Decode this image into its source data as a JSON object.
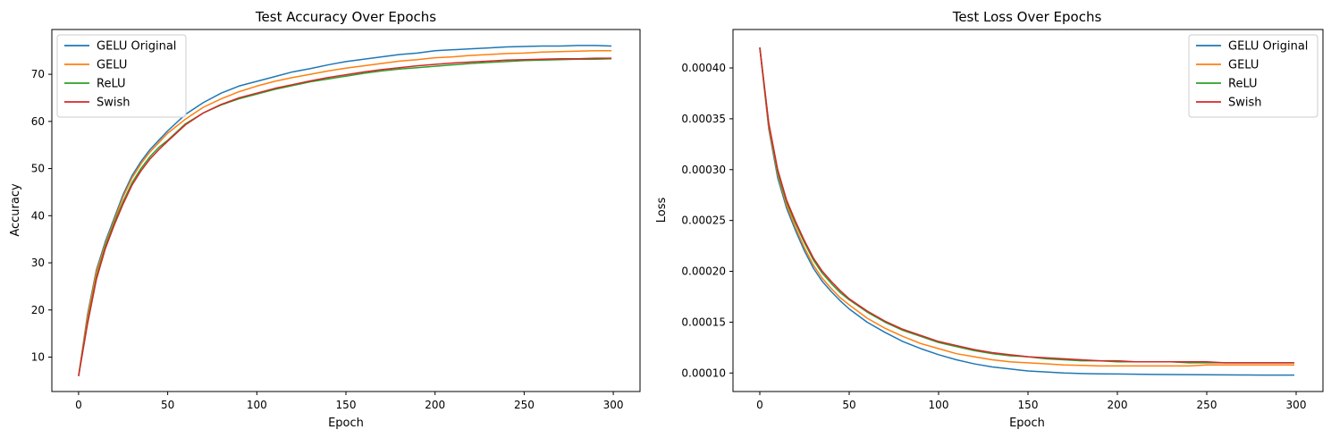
{
  "chart_data": [
    {
      "type": "line",
      "title": "Test Accuracy Over Epochs",
      "xlabel": "Epoch",
      "ylabel": "Accuracy",
      "xlim": [
        -15,
        315
      ],
      "ylim": [
        2.7,
        79.5
      ],
      "xticks": [
        0,
        50,
        100,
        150,
        200,
        250,
        300
      ],
      "yticks": [
        10,
        20,
        30,
        40,
        50,
        60,
        70
      ],
      "legend_position": "top-left",
      "grid": false,
      "series": [
        {
          "name": "GELU Original",
          "color": "#1f77b4",
          "x": [
            0,
            5,
            10,
            15,
            20,
            25,
            30,
            35,
            40,
            45,
            50,
            60,
            70,
            80,
            90,
            100,
            110,
            120,
            130,
            140,
            150,
            160,
            170,
            180,
            190,
            200,
            210,
            220,
            230,
            240,
            250,
            260,
            270,
            280,
            290,
            299
          ],
          "y": [
            6.0,
            19.0,
            28.5,
            34.5,
            39.5,
            44.5,
            48.5,
            51.5,
            54.0,
            56.0,
            58.0,
            61.5,
            64.0,
            66.0,
            67.5,
            68.5,
            69.5,
            70.5,
            71.2,
            72.0,
            72.7,
            73.2,
            73.7,
            74.2,
            74.5,
            75.0,
            75.2,
            75.4,
            75.6,
            75.8,
            75.9,
            76.0,
            76.0,
            76.1,
            76.1,
            76.0
          ]
        },
        {
          "name": "GELU",
          "color": "#ff7f0e",
          "x": [
            0,
            5,
            10,
            15,
            20,
            25,
            30,
            35,
            40,
            45,
            50,
            60,
            70,
            80,
            90,
            100,
            110,
            120,
            130,
            140,
            150,
            160,
            170,
            180,
            190,
            200,
            210,
            220,
            230,
            240,
            250,
            260,
            270,
            280,
            290,
            299
          ],
          "y": [
            6.0,
            18.5,
            28.0,
            34.0,
            39.0,
            44.0,
            48.0,
            51.0,
            53.5,
            55.5,
            57.5,
            60.5,
            63.0,
            64.8,
            66.3,
            67.5,
            68.5,
            69.3,
            70.0,
            70.7,
            71.3,
            71.8,
            72.3,
            72.8,
            73.1,
            73.5,
            73.7,
            74.0,
            74.2,
            74.4,
            74.5,
            74.7,
            74.8,
            74.9,
            75.0,
            75.0
          ]
        },
        {
          "name": "ReLU",
          "color": "#2ca02c",
          "x": [
            0,
            5,
            10,
            15,
            20,
            25,
            30,
            35,
            40,
            45,
            50,
            60,
            70,
            80,
            90,
            100,
            110,
            120,
            130,
            140,
            150,
            160,
            170,
            180,
            190,
            200,
            210,
            220,
            230,
            240,
            250,
            260,
            270,
            280,
            290,
            299
          ],
          "y": [
            6.0,
            17.5,
            27.0,
            33.5,
            38.5,
            43.0,
            47.0,
            50.0,
            52.5,
            54.5,
            56.0,
            59.5,
            61.8,
            63.5,
            64.8,
            65.8,
            66.8,
            67.6,
            68.4,
            69.0,
            69.6,
            70.2,
            70.7,
            71.1,
            71.4,
            71.7,
            72.0,
            72.3,
            72.5,
            72.7,
            72.9,
            73.0,
            73.1,
            73.2,
            73.2,
            73.3
          ]
        },
        {
          "name": "Swish",
          "color": "#d62728",
          "x": [
            0,
            5,
            10,
            15,
            20,
            25,
            30,
            35,
            40,
            45,
            50,
            60,
            70,
            80,
            90,
            100,
            110,
            120,
            130,
            140,
            150,
            160,
            170,
            180,
            190,
            200,
            210,
            220,
            230,
            240,
            250,
            260,
            270,
            280,
            290,
            299
          ],
          "y": [
            6.0,
            17.0,
            26.5,
            33.0,
            38.0,
            42.5,
            46.5,
            49.5,
            52.0,
            54.0,
            55.8,
            59.3,
            61.8,
            63.6,
            65.0,
            66.0,
            67.0,
            67.8,
            68.6,
            69.3,
            69.9,
            70.5,
            71.0,
            71.4,
            71.8,
            72.1,
            72.4,
            72.6,
            72.8,
            73.0,
            73.1,
            73.2,
            73.3,
            73.3,
            73.4,
            73.4
          ]
        }
      ]
    },
    {
      "type": "line",
      "title": "Test Loss Over Epochs",
      "xlabel": "Epoch",
      "ylabel": "Loss",
      "xlim": [
        -15,
        315
      ],
      "ylim": [
        8.18e-05,
        0.0004378
      ],
      "xticks": [
        0,
        50,
        100,
        150,
        200,
        250,
        300
      ],
      "yticks": [
        0.0001,
        0.00015,
        0.0002,
        0.00025,
        0.0003,
        0.00035,
        0.0004
      ],
      "ytick_labels": [
        "0.00010",
        "0.00015",
        "0.00020",
        "0.00025",
        "0.00030",
        "0.00035",
        "0.00040"
      ],
      "legend_position": "top-right",
      "grid": false,
      "series": [
        {
          "name": "GELU Original",
          "color": "#1f77b4",
          "x": [
            0,
            5,
            10,
            15,
            20,
            25,
            30,
            35,
            40,
            45,
            50,
            60,
            70,
            80,
            90,
            100,
            110,
            120,
            130,
            140,
            150,
            160,
            170,
            180,
            190,
            200,
            210,
            220,
            230,
            240,
            250,
            260,
            270,
            280,
            290,
            299
          ],
          "y": [
            0.00042,
            0.00034,
            0.000292,
            0.000262,
            0.00024,
            0.00022,
            0.000203,
            0.00019,
            0.00018,
            0.000171,
            0.000163,
            0.00015,
            0.00014,
            0.000131,
            0.000124,
            0.000118,
            0.000113,
            0.000109,
            0.000106,
            0.000104,
            0.000102,
            0.000101,
            0.0001,
            9.95e-05,
            9.92e-05,
            9.9e-05,
            9.88e-05,
            9.86e-05,
            9.85e-05,
            9.84e-05,
            9.83e-05,
            9.82e-05,
            9.81e-05,
            9.8e-05,
            9.8e-05,
            9.8e-05
          ]
        },
        {
          "name": "GELU",
          "color": "#ff7f0e",
          "x": [
            0,
            5,
            10,
            15,
            20,
            25,
            30,
            35,
            40,
            45,
            50,
            60,
            70,
            80,
            90,
            100,
            110,
            120,
            130,
            140,
            150,
            160,
            170,
            180,
            190,
            200,
            210,
            220,
            230,
            240,
            250,
            260,
            270,
            280,
            290,
            299
          ],
          "y": [
            0.00042,
            0.000342,
            0.000295,
            0.000265,
            0.000243,
            0.000223,
            0.000206,
            0.000193,
            0.000183,
            0.000174,
            0.000167,
            0.000154,
            0.000144,
            0.000136,
            0.000129,
            0.000124,
            0.000119,
            0.000116,
            0.000113,
            0.000111,
            0.00011,
            0.000109,
            0.000108,
            0.0001075,
            0.000107,
            0.000107,
            0.000107,
            0.000107,
            0.000107,
            0.000107,
            0.000108,
            0.000108,
            0.000108,
            0.000108,
            0.000108,
            0.000108
          ]
        },
        {
          "name": "ReLU",
          "color": "#2ca02c",
          "x": [
            0,
            5,
            10,
            15,
            20,
            25,
            30,
            35,
            40,
            45,
            50,
            60,
            70,
            80,
            90,
            100,
            110,
            120,
            130,
            140,
            150,
            160,
            170,
            180,
            190,
            200,
            210,
            220,
            230,
            240,
            250,
            260,
            270,
            280,
            290,
            299
          ],
          "y": [
            0.00042,
            0.000345,
            0.000297,
            0.000268,
            0.000247,
            0.000228,
            0.000211,
            0.000198,
            0.000188,
            0.000179,
            0.000172,
            0.00016,
            0.00015,
            0.000142,
            0.000136,
            0.00013,
            0.000126,
            0.000122,
            0.000119,
            0.000117,
            0.000116,
            0.000114,
            0.000113,
            0.000112,
            0.000112,
            0.000111,
            0.000111,
            0.000111,
            0.000111,
            0.00011,
            0.00011,
            0.00011,
            0.00011,
            0.00011,
            0.00011,
            0.00011
          ]
        },
        {
          "name": "Swish",
          "color": "#d62728",
          "x": [
            0,
            5,
            10,
            15,
            20,
            25,
            30,
            35,
            40,
            45,
            50,
            60,
            70,
            80,
            90,
            100,
            110,
            120,
            130,
            140,
            150,
            160,
            170,
            180,
            190,
            200,
            210,
            220,
            230,
            240,
            250,
            260,
            270,
            280,
            290,
            299
          ],
          "y": [
            0.00042,
            0.000346,
            0.0003,
            0.00027,
            0.000249,
            0.00023,
            0.000213,
            0.0002,
            0.00019,
            0.000181,
            0.000173,
            0.000161,
            0.000151,
            0.000143,
            0.000137,
            0.000131,
            0.000127,
            0.000123,
            0.00012,
            0.000118,
            0.000116,
            0.000115,
            0.000114,
            0.000113,
            0.000112,
            0.000112,
            0.000111,
            0.000111,
            0.000111,
            0.000111,
            0.000111,
            0.00011,
            0.00011,
            0.00011,
            0.00011,
            0.00011
          ]
        }
      ]
    }
  ]
}
